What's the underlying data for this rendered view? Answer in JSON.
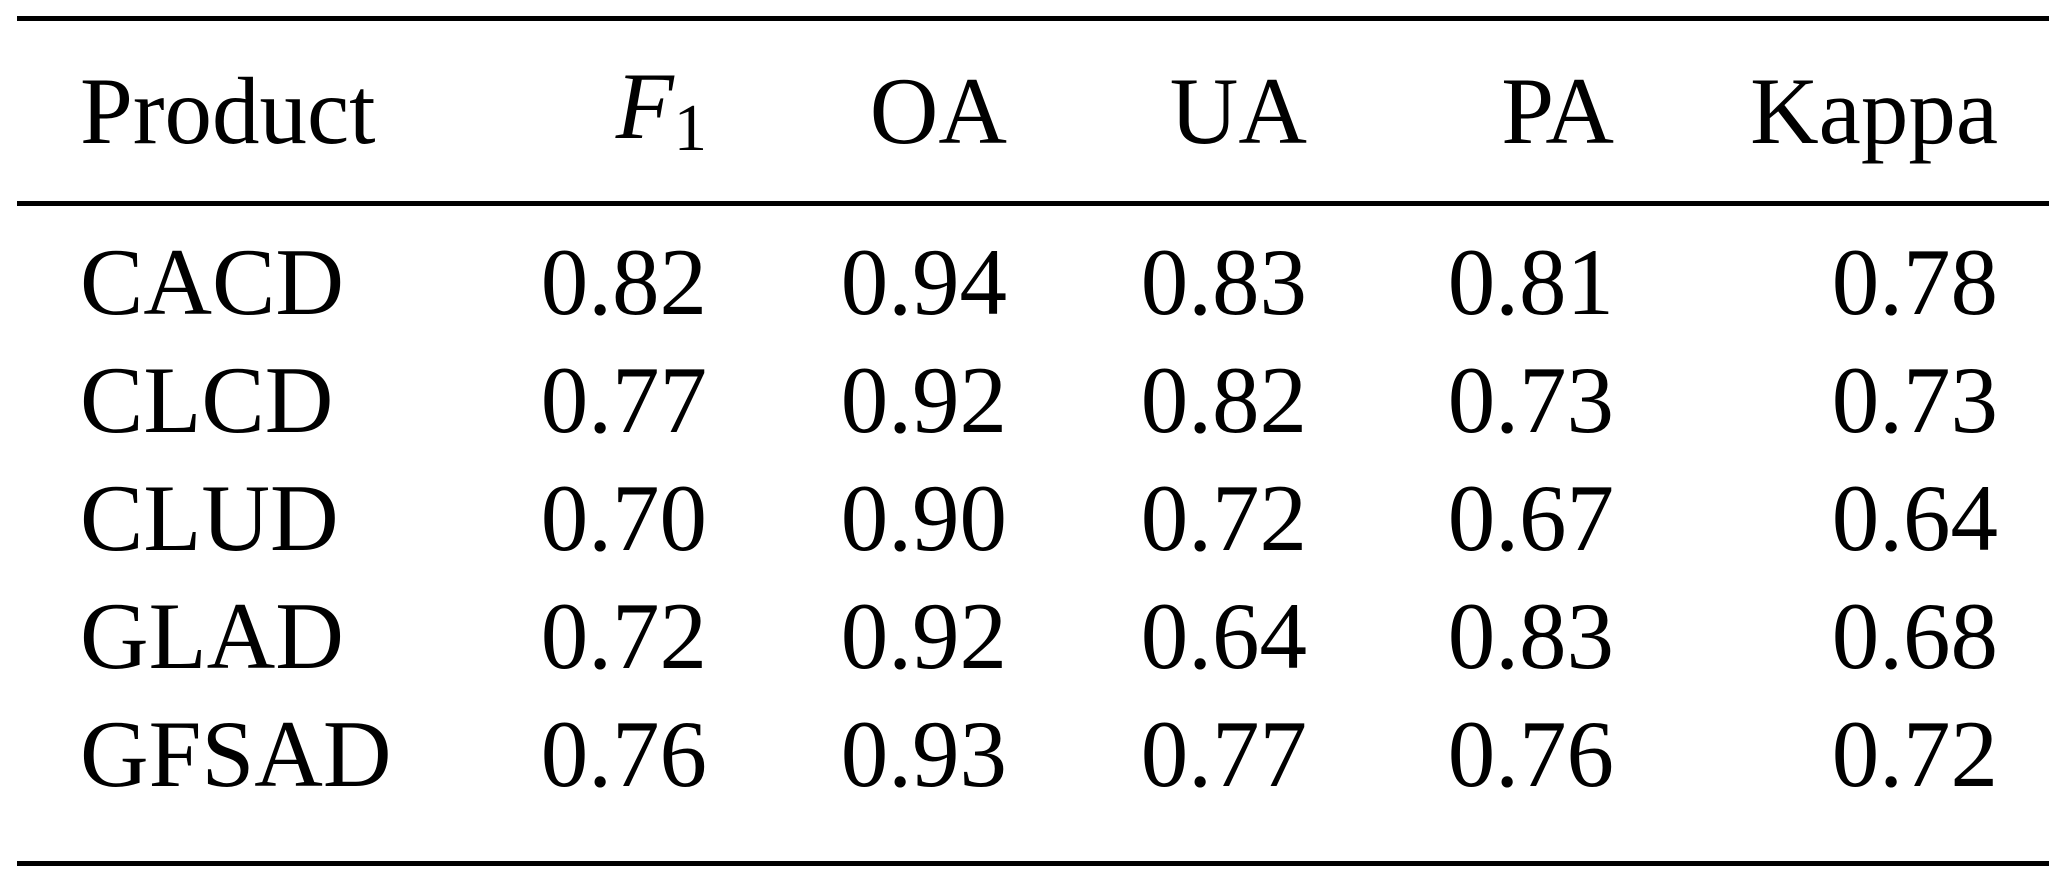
{
  "table": {
    "columns": {
      "product": {
        "label": "Product"
      },
      "f1": {
        "label_base": "F",
        "label_sub": "1"
      },
      "oa": {
        "label": "OA"
      },
      "ua": {
        "label": "UA"
      },
      "pa": {
        "label": "PA"
      },
      "kappa": {
        "label": "Kappa"
      }
    },
    "rows": [
      {
        "product": "CACD",
        "f1": "0.82",
        "oa": "0.94",
        "ua": "0.83",
        "pa": "0.81",
        "kappa": "0.78"
      },
      {
        "product": "CLCD",
        "f1": "0.77",
        "oa": "0.92",
        "ua": "0.82",
        "pa": "0.73",
        "kappa": "0.73"
      },
      {
        "product": "CLUD",
        "f1": "0.70",
        "oa": "0.90",
        "ua": "0.72",
        "pa": "0.67",
        "kappa": "0.64"
      },
      {
        "product": "GLAD",
        "f1": "0.72",
        "oa": "0.92",
        "ua": "0.64",
        "pa": "0.83",
        "kappa": "0.68"
      },
      {
        "product": "GFSAD",
        "f1": "0.76",
        "oa": "0.93",
        "ua": "0.77",
        "pa": "0.76",
        "kappa": "0.72"
      }
    ]
  },
  "colors": {
    "text": "#000000",
    "background": "#ffffff",
    "rule": "#000000"
  }
}
